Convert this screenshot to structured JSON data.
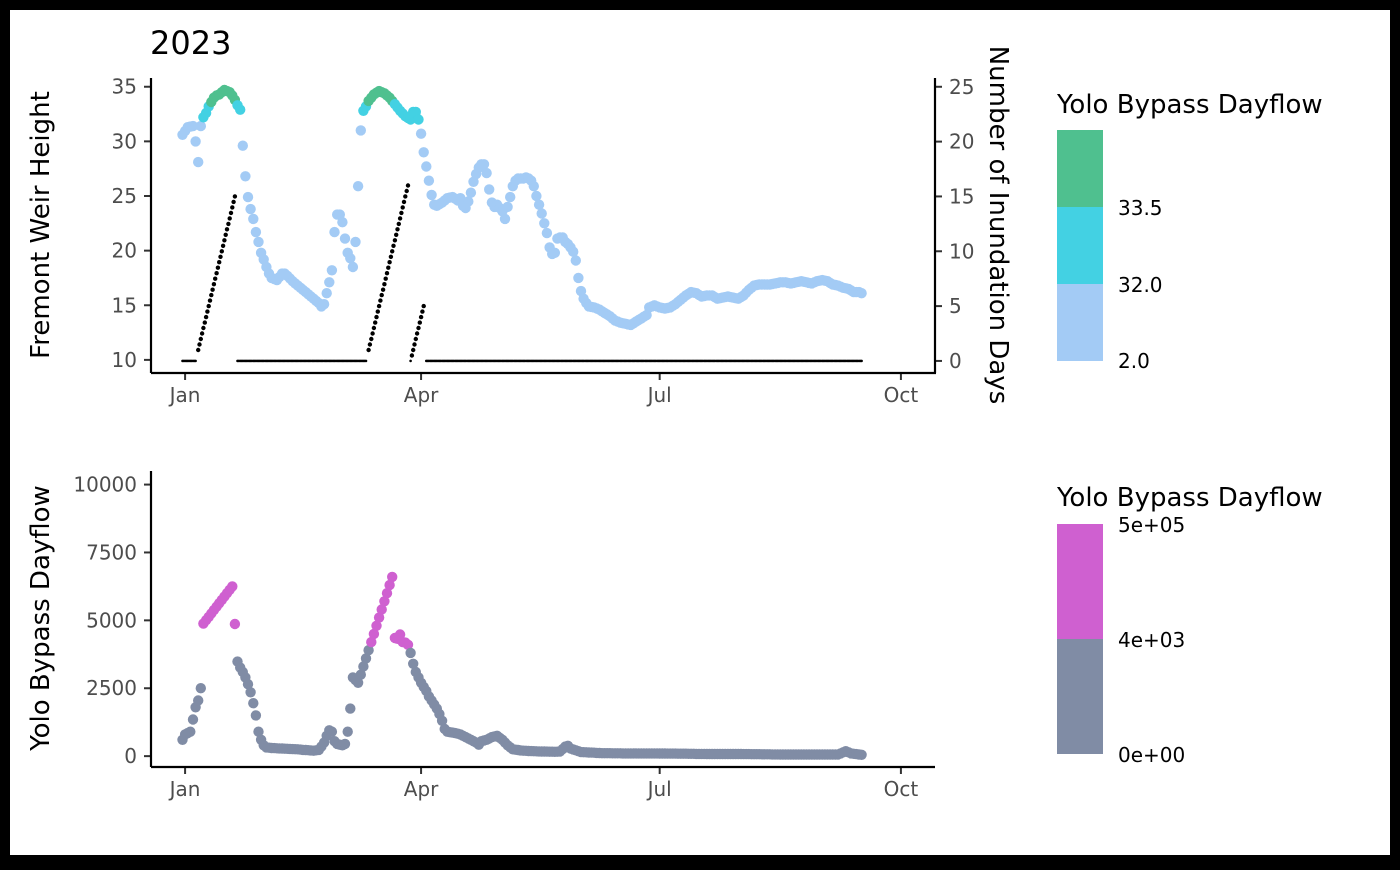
{
  "chart_data": [
    {
      "type": "scatter",
      "title": "2023",
      "ylabel": "Fremont Weir Height",
      "y2label": "Number of Inundation Days",
      "x_ticks": [
        "Jan",
        "Apr",
        "Jul",
        "Oct"
      ],
      "x_tick_days": [
        1,
        91,
        182,
        274
      ],
      "xlim": [
        -12,
        287
      ],
      "ylim": [
        8.8,
        35.8
      ],
      "y_ticks": [
        10,
        15,
        20,
        25,
        30,
        35
      ],
      "y2lim": [
        -1.1,
        25.8
      ],
      "y2_ticks": [
        0,
        5,
        10,
        15,
        20,
        25
      ],
      "color_thresholds": [
        32.0,
        33.5
      ],
      "colors": {
        "low": "#a3cbf5",
        "mid": "#43d1e3",
        "high": "#4fc08f",
        "days": "#000000"
      },
      "height_anchors": [
        [
          0,
          30.6
        ],
        [
          2,
          31.3
        ],
        [
          4,
          31.4
        ],
        [
          5,
          30.0
        ],
        [
          6,
          28.1
        ],
        [
          7,
          31.4
        ],
        [
          8,
          32.2
        ],
        [
          9,
          32.6
        ],
        [
          10,
          33.2
        ],
        [
          11,
          33.6
        ],
        [
          12,
          34.0
        ],
        [
          13,
          34.2
        ],
        [
          14,
          34.3
        ],
        [
          15,
          34.5
        ],
        [
          16,
          34.7
        ],
        [
          17,
          34.6
        ],
        [
          18,
          34.5
        ],
        [
          19,
          34.2
        ],
        [
          20,
          33.8
        ],
        [
          21,
          33.3
        ],
        [
          22,
          32.9
        ],
        [
          23,
          29.6
        ],
        [
          24,
          26.8
        ],
        [
          25,
          24.9
        ],
        [
          26,
          23.8
        ],
        [
          27,
          22.9
        ],
        [
          28,
          21.7
        ],
        [
          29,
          20.8
        ],
        [
          30,
          19.8
        ],
        [
          31,
          19.2
        ],
        [
          32,
          18.5
        ],
        [
          33,
          17.9
        ],
        [
          34,
          17.5
        ],
        [
          35,
          17.4
        ],
        [
          36,
          17.3
        ],
        [
          37,
          17.6
        ],
        [
          38,
          17.9
        ],
        [
          39,
          17.9
        ],
        [
          40,
          17.7
        ],
        [
          42,
          17.2
        ],
        [
          44,
          16.8
        ],
        [
          46,
          16.4
        ],
        [
          48,
          16.0
        ],
        [
          50,
          15.6
        ],
        [
          52,
          15.2
        ],
        [
          53,
          14.9
        ],
        [
          54,
          15.1
        ],
        [
          55,
          16.1
        ],
        [
          56,
          17.1
        ],
        [
          57,
          18.2
        ],
        [
          58,
          21.7
        ],
        [
          59,
          23.3
        ],
        [
          60,
          23.3
        ],
        [
          61,
          22.6
        ],
        [
          62,
          21.1
        ],
        [
          63,
          19.8
        ],
        [
          64,
          19.3
        ],
        [
          65,
          18.5
        ],
        [
          66,
          20.8
        ],
        [
          67,
          25.9
        ],
        [
          68,
          31.0
        ],
        [
          69,
          32.8
        ],
        [
          70,
          33.2
        ],
        [
          71,
          33.7
        ],
        [
          72,
          34.0
        ],
        [
          73,
          34.3
        ],
        [
          75,
          34.6
        ],
        [
          77,
          34.4
        ],
        [
          79,
          34.0
        ],
        [
          81,
          33.4
        ],
        [
          83,
          32.8
        ],
        [
          85,
          32.3
        ],
        [
          87,
          32.0
        ],
        [
          88,
          32.7
        ],
        [
          89,
          32.7
        ],
        [
          90,
          32.0
        ],
        [
          91,
          30.7
        ],
        [
          92,
          29.0
        ],
        [
          93,
          27.7
        ],
        [
          94,
          26.4
        ],
        [
          95,
          25.1
        ],
        [
          96,
          24.2
        ],
        [
          97,
          24.1
        ],
        [
          99,
          24.4
        ],
        [
          101,
          24.8
        ],
        [
          103,
          24.9
        ],
        [
          105,
          24.6
        ],
        [
          106,
          24.8
        ],
        [
          107,
          24.1
        ],
        [
          108,
          23.9
        ],
        [
          109,
          24.5
        ],
        [
          110,
          25.3
        ],
        [
          111,
          26.3
        ],
        [
          112,
          27.0
        ],
        [
          113,
          27.6
        ],
        [
          114,
          27.9
        ],
        [
          115,
          27.9
        ],
        [
          116,
          27.1
        ],
        [
          117,
          25.6
        ],
        [
          118,
          24.4
        ],
        [
          119,
          24.0
        ],
        [
          120,
          24.2
        ],
        [
          121,
          23.9
        ],
        [
          122,
          23.6
        ],
        [
          123,
          22.9
        ],
        [
          124,
          24.0
        ],
        [
          125,
          24.9
        ],
        [
          126,
          25.9
        ],
        [
          127,
          26.4
        ],
        [
          128,
          26.6
        ],
        [
          130,
          26.6
        ],
        [
          131,
          26.7
        ],
        [
          132,
          26.6
        ],
        [
          133,
          26.4
        ],
        [
          134,
          25.9
        ],
        [
          135,
          25.0
        ],
        [
          136,
          24.2
        ],
        [
          137,
          23.4
        ],
        [
          138,
          22.5
        ],
        [
          139,
          21.6
        ],
        [
          140,
          20.3
        ],
        [
          141,
          19.7
        ],
        [
          142,
          19.8
        ],
        [
          143,
          21.1
        ],
        [
          144,
          21.2
        ],
        [
          145,
          21.2
        ],
        [
          146,
          20.8
        ],
        [
          147,
          20.6
        ],
        [
          148,
          20.3
        ],
        [
          149,
          19.9
        ],
        [
          150,
          19.1
        ],
        [
          151,
          17.5
        ],
        [
          152,
          16.3
        ],
        [
          153,
          15.6
        ],
        [
          154,
          15.2
        ],
        [
          155,
          14.9
        ],
        [
          157,
          14.8
        ],
        [
          159,
          14.6
        ],
        [
          161,
          14.3
        ],
        [
          163,
          14.0
        ],
        [
          165,
          13.6
        ],
        [
          167,
          13.4
        ],
        [
          169,
          13.3
        ],
        [
          171,
          13.2
        ],
        [
          173,
          13.5
        ],
        [
          175,
          13.8
        ],
        [
          177,
          14.1
        ],
        [
          178,
          14.8
        ],
        [
          180,
          15.0
        ],
        [
          182,
          14.8
        ],
        [
          184,
          14.7
        ],
        [
          186,
          14.8
        ],
        [
          188,
          15.1
        ],
        [
          190,
          15.5
        ],
        [
          192,
          15.9
        ],
        [
          194,
          16.2
        ],
        [
          196,
          16.1
        ],
        [
          198,
          15.8
        ],
        [
          200,
          15.9
        ],
        [
          202,
          15.9
        ],
        [
          204,
          15.6
        ],
        [
          206,
          15.7
        ],
        [
          208,
          15.8
        ],
        [
          210,
          15.7
        ],
        [
          212,
          15.6
        ],
        [
          214,
          15.9
        ],
        [
          216,
          16.4
        ],
        [
          218,
          16.8
        ],
        [
          220,
          16.9
        ],
        [
          222,
          16.9
        ],
        [
          224,
          16.9
        ],
        [
          226,
          17.0
        ],
        [
          228,
          17.1
        ],
        [
          230,
          17.1
        ],
        [
          232,
          17.0
        ],
        [
          234,
          17.1
        ],
        [
          236,
          17.2
        ],
        [
          238,
          17.1
        ],
        [
          240,
          17.0
        ],
        [
          242,
          17.2
        ],
        [
          244,
          17.3
        ],
        [
          246,
          17.2
        ],
        [
          248,
          16.9
        ],
        [
          250,
          16.8
        ],
        [
          252,
          16.6
        ],
        [
          254,
          16.5
        ],
        [
          256,
          16.2
        ],
        [
          258,
          16.2
        ],
        [
          259,
          16.1
        ]
      ],
      "height_range": [
        0,
        259
      ],
      "inundation_segments": [
        {
          "start": 0,
          "end": 5,
          "from": 0,
          "to": 0
        },
        {
          "start": 6,
          "end": 20,
          "from": 1,
          "to": 15
        },
        {
          "start": 21,
          "end": 70,
          "from": 0,
          "to": 0
        },
        {
          "start": 71,
          "end": 86,
          "from": 1,
          "to": 16
        },
        {
          "start": 87,
          "end": 92,
          "from": 0,
          "to": 5
        },
        {
          "start": 93,
          "end": 259,
          "from": 0,
          "to": 0
        }
      ]
    },
    {
      "type": "scatter",
      "ylabel": "Yolo Bypass Dayflow",
      "x_ticks": [
        "Jan",
        "Apr",
        "Jul",
        "Oct"
      ],
      "x_tick_days": [
        1,
        91,
        182,
        274
      ],
      "xlim": [
        -12,
        287
      ],
      "ylim": [
        -400,
        10500
      ],
      "y_ticks": [
        0,
        2500,
        5000,
        7500,
        10000
      ],
      "color_threshold": 4000,
      "colors": {
        "low": "#808ca5",
        "high": "#cf60d0"
      },
      "flow_anchors": [
        [
          0,
          600
        ],
        [
          1,
          800
        ],
        [
          2,
          850
        ],
        [
          3,
          900
        ],
        [
          4,
          1350
        ],
        [
          5,
          1800
        ],
        [
          6,
          2050
        ],
        [
          7,
          2500
        ],
        [
          8,
          4880
        ],
        [
          19,
          6250
        ],
        [
          21,
          3480
        ],
        [
          22,
          3260
        ],
        [
          23,
          3100
        ],
        [
          24,
          2900
        ],
        [
          25,
          2650
        ],
        [
          26,
          2350
        ],
        [
          27,
          1950
        ],
        [
          28,
          1500
        ],
        [
          29,
          900
        ],
        [
          30,
          600
        ],
        [
          31,
          400
        ],
        [
          32,
          320
        ],
        [
          34,
          300
        ],
        [
          36,
          290
        ],
        [
          38,
          280
        ],
        [
          40,
          270
        ],
        [
          42,
          260
        ],
        [
          44,
          250
        ],
        [
          46,
          230
        ],
        [
          48,
          220
        ],
        [
          50,
          200
        ],
        [
          52,
          230
        ],
        [
          53,
          350
        ],
        [
          54,
          500
        ],
        [
          55,
          750
        ],
        [
          56,
          950
        ],
        [
          57,
          900
        ],
        [
          58,
          550
        ],
        [
          59,
          450
        ],
        [
          60,
          420
        ],
        [
          61,
          400
        ],
        [
          62,
          450
        ],
        [
          63,
          900
        ],
        [
          64,
          1750
        ],
        [
          65,
          2900
        ],
        [
          66,
          2800
        ],
        [
          67,
          2700
        ],
        [
          80,
          6600
        ],
        [
          81,
          4350
        ],
        [
          82,
          4320
        ],
        [
          83,
          4480
        ],
        [
          84,
          4200
        ],
        [
          85,
          4180
        ],
        [
          86,
          4100
        ],
        [
          87,
          3800
        ],
        [
          88,
          3400
        ],
        [
          89,
          3100
        ],
        [
          90,
          2900
        ],
        [
          91,
          2700
        ],
        [
          92,
          2550
        ],
        [
          93,
          2400
        ],
        [
          94,
          2200
        ],
        [
          95,
          2050
        ],
        [
          96,
          1900
        ],
        [
          97,
          1750
        ],
        [
          98,
          1550
        ],
        [
          99,
          1300
        ],
        [
          100,
          1000
        ],
        [
          101,
          900
        ],
        [
          102,
          880
        ],
        [
          104,
          850
        ],
        [
          106,
          800
        ],
        [
          108,
          700
        ],
        [
          110,
          600
        ],
        [
          112,
          500
        ],
        [
          113,
          420
        ],
        [
          114,
          550
        ],
        [
          116,
          600
        ],
        [
          118,
          700
        ],
        [
          120,
          750
        ],
        [
          122,
          600
        ],
        [
          124,
          400
        ],
        [
          126,
          250
        ],
        [
          130,
          200
        ],
        [
          134,
          180
        ],
        [
          138,
          170
        ],
        [
          142,
          160
        ],
        [
          144,
          170
        ],
        [
          146,
          350
        ],
        [
          147,
          380
        ],
        [
          148,
          280
        ],
        [
          152,
          150
        ],
        [
          160,
          110
        ],
        [
          170,
          100
        ],
        [
          180,
          100
        ],
        [
          190,
          90
        ],
        [
          200,
          80
        ],
        [
          210,
          80
        ],
        [
          220,
          70
        ],
        [
          230,
          60
        ],
        [
          240,
          60
        ],
        [
          250,
          60
        ],
        [
          253,
          180
        ],
        [
          255,
          100
        ],
        [
          258,
          60
        ],
        [
          259,
          50
        ]
      ],
      "flow_range": [
        0,
        259
      ]
    }
  ],
  "legends": [
    {
      "title": "Yolo Bypass Dayflow",
      "labels": [
        "33.5",
        "32.0",
        "2.0"
      ],
      "colors": [
        "#4fc08f",
        "#43d1e3",
        "#a3cbf5"
      ]
    },
    {
      "title": "Yolo Bypass Dayflow",
      "labels": [
        "5e+05",
        "4e+03",
        "0e+00"
      ],
      "colors": [
        "#cf60d0",
        "#808ca5"
      ]
    }
  ]
}
